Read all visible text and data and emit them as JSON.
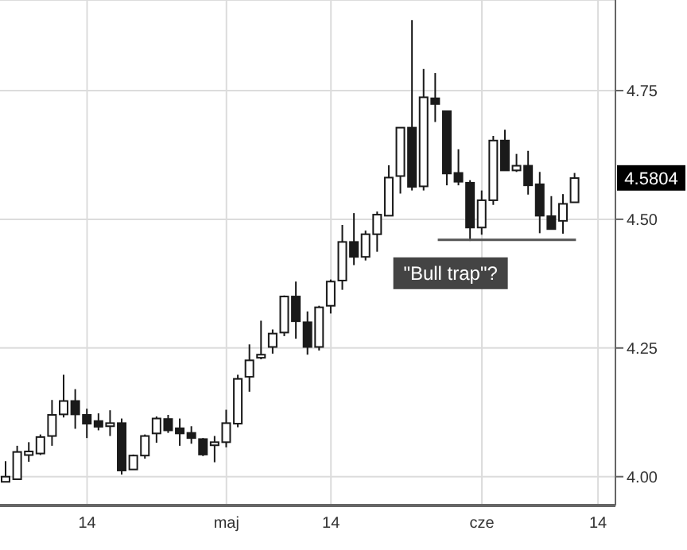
{
  "chart_data": {
    "type": "candlestick",
    "categories": [
      null,
      null,
      null,
      null,
      null,
      null,
      null,
      "14",
      null,
      null,
      null,
      null,
      null,
      null,
      null,
      null,
      null,
      null,
      null,
      "maj",
      null,
      null,
      null,
      null,
      null,
      null,
      null,
      null,
      "14",
      null,
      null,
      null,
      null,
      null,
      null,
      null,
      null,
      null,
      null,
      null,
      null,
      "cze",
      null,
      null,
      null,
      null,
      null,
      null,
      null,
      null,
      null,
      "14",
      null
    ],
    "ohlc": [
      [
        3.99,
        4.03,
        3.99,
        4.0
      ],
      [
        3.995,
        4.06,
        3.995,
        4.048
      ],
      [
        4.042,
        4.067,
        4.029,
        4.049
      ],
      [
        4.045,
        4.082,
        4.042,
        4.077
      ],
      [
        4.079,
        4.149,
        4.06,
        4.12
      ],
      [
        4.121,
        4.198,
        4.115,
        4.147
      ],
      [
        4.147,
        4.17,
        4.093,
        4.121
      ],
      [
        4.12,
        4.132,
        4.075,
        4.103
      ],
      [
        4.108,
        4.123,
        4.09,
        4.097
      ],
      [
        4.098,
        4.129,
        4.079,
        4.104
      ],
      [
        4.104,
        4.113,
        4.004,
        4.012
      ],
      [
        4.014,
        4.043,
        4.014,
        4.041
      ],
      [
        4.041,
        4.082,
        4.035,
        4.079
      ],
      [
        4.084,
        4.117,
        4.066,
        4.113
      ],
      [
        4.112,
        4.12,
        4.085,
        4.09
      ],
      [
        4.094,
        4.113,
        4.06,
        4.084
      ],
      [
        4.085,
        4.098,
        4.064,
        4.075
      ],
      [
        4.073,
        4.075,
        4.04,
        4.043
      ],
      [
        4.061,
        4.079,
        4.028,
        4.067
      ],
      [
        4.067,
        4.13,
        4.057,
        4.104
      ],
      [
        4.103,
        4.198,
        4.096,
        4.19
      ],
      [
        4.194,
        4.257,
        4.165,
        4.226
      ],
      [
        4.231,
        4.303,
        4.228,
        4.237
      ],
      [
        4.252,
        4.286,
        4.239,
        4.278
      ],
      [
        4.28,
        4.352,
        4.273,
        4.35
      ],
      [
        4.35,
        4.379,
        4.268,
        4.302
      ],
      [
        4.3,
        4.321,
        4.237,
        4.252
      ],
      [
        4.252,
        4.332,
        4.245,
        4.329
      ],
      [
        4.332,
        4.383,
        4.317,
        4.379
      ],
      [
        4.381,
        4.489,
        4.363,
        4.456
      ],
      [
        4.456,
        4.512,
        4.411,
        4.427
      ],
      [
        4.427,
        4.478,
        4.42,
        4.471
      ],
      [
        4.471,
        4.515,
        4.437,
        4.509
      ],
      [
        4.507,
        4.605,
        4.507,
        4.581
      ],
      [
        4.584,
        4.678,
        4.55,
        4.678
      ],
      [
        4.678,
        4.887,
        4.556,
        4.563
      ],
      [
        4.564,
        4.792,
        4.556,
        4.737
      ],
      [
        4.735,
        4.784,
        4.689,
        4.724
      ],
      [
        4.71,
        4.71,
        4.566,
        4.589
      ],
      [
        4.59,
        4.636,
        4.566,
        4.573
      ],
      [
        4.571,
        4.576,
        4.458,
        4.484
      ],
      [
        4.484,
        4.556,
        4.47,
        4.537
      ],
      [
        4.537,
        4.662,
        4.528,
        4.653
      ],
      [
        4.653,
        4.674,
        4.595,
        4.595
      ],
      [
        4.595,
        4.627,
        4.592,
        4.604
      ],
      [
        4.604,
        4.633,
        4.548,
        4.566
      ],
      [
        4.568,
        4.592,
        4.473,
        4.507
      ],
      [
        4.506,
        4.545,
        4.481,
        4.481
      ],
      [
        4.497,
        4.549,
        4.472,
        4.53
      ],
      [
        4.533,
        4.59,
        4.533,
        4.58
      ],
      null,
      null,
      null
    ],
    "color": "#1a1a1a",
    "ylim": [
      3.944,
      4.926
    ],
    "yticks": [
      {
        "value": 4,
        "label": "4.00"
      },
      {
        "value": 4.25,
        "label": "4.25"
      },
      {
        "value": 4.5,
        "label": "4.50"
      },
      {
        "value": 4.75,
        "label": "4.75"
      }
    ],
    "grid": true,
    "ref_lines": [
      {
        "axis": "y",
        "value": 4.46,
        "label": "\"Bull trap\"?",
        "color": "#555555"
      }
    ],
    "annotations": [
      {
        "text": "4.5804",
        "y": 4.5804
      }
    ]
  }
}
